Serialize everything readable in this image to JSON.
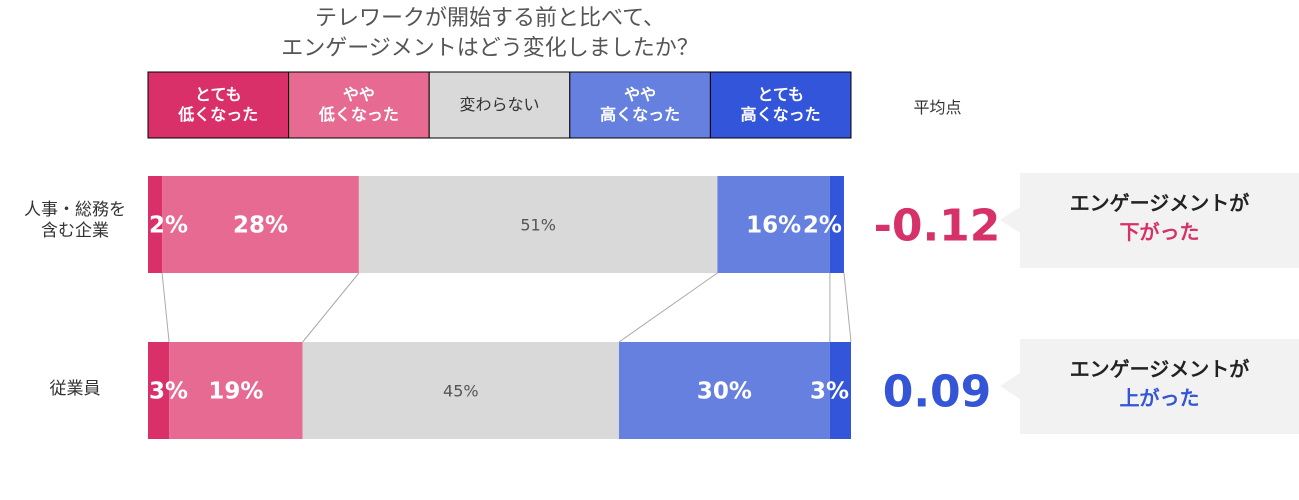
{
  "chart_data": {
    "type": "stacked-bar-h",
    "title": "テレワークが開始する前と比べて、\nエンゲージメントはどう変化しましたか？",
    "categories": [
      "人事・総務を\n含む企業",
      "従業員"
    ],
    "xlim": [
      0,
      100
    ],
    "series": [
      {
        "name": "とても\n低くなった",
        "color": "#d9306a",
        "label_color": "#ffffff",
        "values": [
          2,
          3
        ],
        "value_labels": [
          "2%",
          "3%"
        ]
      },
      {
        "name": "やや\n低くなった",
        "color": "#e66a92",
        "label_color": "#ffffff",
        "values": [
          28,
          19
        ],
        "value_labels": [
          "28%",
          "19%"
        ]
      },
      {
        "name": "変わらない",
        "color": "#d9d9d9",
        "label_color": "#555555",
        "values": [
          51,
          45
        ],
        "value_labels": [
          "51%",
          "45%"
        ]
      },
      {
        "name": "やや\n高くなった",
        "color": "#6680e0",
        "label_color": "#ffffff",
        "values": [
          16,
          30
        ],
        "value_labels": [
          "16%",
          "30%"
        ]
      },
      {
        "name": "とても\n高くなった",
        "color": "#3355d9",
        "label_color": "#ffffff",
        "values": [
          2,
          3
        ],
        "value_labels": [
          "2%",
          "3%"
        ]
      }
    ],
    "averages": {
      "label": "平均点",
      "values": [
        -0.12,
        0.09
      ],
      "colors": [
        "#d63168",
        "#3355d6"
      ]
    },
    "callouts": [
      {
        "text": "エンゲージメントが",
        "highlight": "下がった",
        "color": "#d63168"
      },
      {
        "text": "エンゲージメントが",
        "highlight": "上がった",
        "color": "#3355d6"
      }
    ]
  }
}
